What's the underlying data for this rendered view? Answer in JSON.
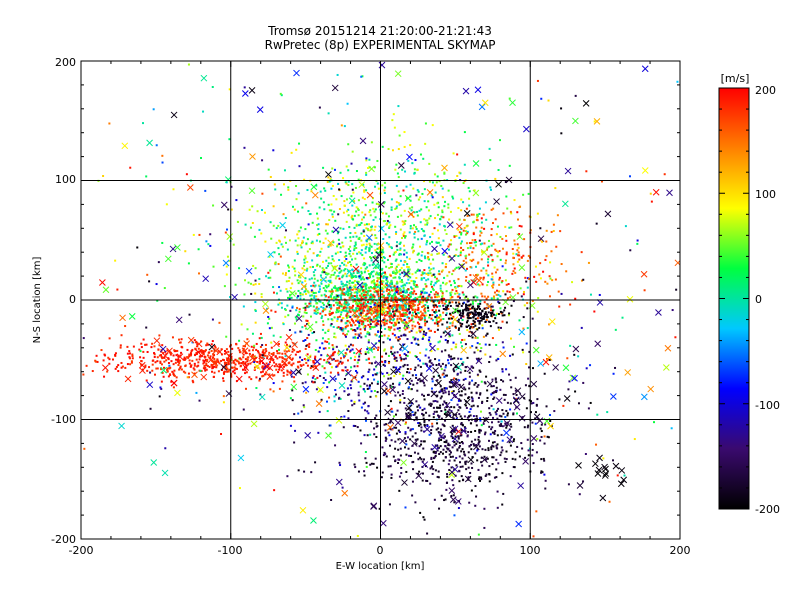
{
  "chart_data": {
    "type": "scatter",
    "title": "Tromsø 20151214 21:20:00-21:21:43",
    "subtitle": "RwPretec (8p) EXPERIMENTAL SKYMAP",
    "xlabel": "E-W location [km]",
    "ylabel": "N-S location [km]",
    "xlim": [
      -200,
      200
    ],
    "ylim": [
      -200,
      200
    ],
    "xticks": [
      "-200",
      "-100",
      "0",
      "100",
      "200"
    ],
    "yticks": [
      "-200",
      "-100",
      "0",
      "100",
      "200"
    ],
    "grid": true,
    "colorbar": {
      "label": "[m/s]",
      "range": [
        -200,
        200
      ],
      "ticks": [
        "-200",
        "-100",
        "0",
        "100",
        "200"
      ],
      "colormap": [
        "#000000",
        "#3a0a6e",
        "#0000ff",
        "#00c8ff",
        "#00ff40",
        "#ffff00",
        "#ff8000",
        "#ff0000"
      ]
    },
    "markers": [
      {
        "symbol": "dot",
        "meaning": "small plus / dot detections"
      },
      {
        "symbol": "x",
        "meaning": "cross detections"
      }
    ],
    "clusters": [
      {
        "cx": 0,
        "cy": 30,
        "sx": 45,
        "sy": 45,
        "n": 1400,
        "vel": [
          -20,
          110
        ]
      },
      {
        "cx": -8,
        "cy": 5,
        "sx": 25,
        "sy": 14,
        "n": 700,
        "vel": [
          -30,
          60
        ]
      },
      {
        "cx": 5,
        "cy": -8,
        "sx": 22,
        "sy": 10,
        "n": 500,
        "vel": [
          150,
          200
        ]
      },
      {
        "cx": -105,
        "cy": -50,
        "sx": 45,
        "sy": 8,
        "n": 650,
        "vel": [
          170,
          200
        ]
      },
      {
        "cx": 50,
        "cy": -108,
        "sx": 30,
        "sy": 32,
        "n": 750,
        "vel": [
          -200,
          -150
        ]
      },
      {
        "cx": 15,
        "cy": -60,
        "sx": 40,
        "sy": 35,
        "n": 450,
        "vel": [
          -190,
          -60
        ]
      },
      {
        "cx": 75,
        "cy": 30,
        "sx": 25,
        "sy": 25,
        "n": 220,
        "vel": [
          130,
          200
        ]
      },
      {
        "cx": 60,
        "cy": -12,
        "sx": 12,
        "sy": 6,
        "n": 180,
        "vel": [
          -200,
          -180
        ]
      },
      {
        "cx": 0,
        "cy": 0,
        "sx": 120,
        "sy": 110,
        "n": 350,
        "vel": [
          -200,
          200
        ]
      }
    ],
    "crosses": [
      {
        "cx": 0,
        "cy": 0,
        "sx": 110,
        "sy": 100,
        "n": 230,
        "vel": [
          -200,
          200
        ]
      },
      {
        "cx": -100,
        "cy": -50,
        "sx": 40,
        "sy": 10,
        "n": 40,
        "vel": [
          170,
          200
        ]
      },
      {
        "cx": 50,
        "cy": -100,
        "sx": 40,
        "sy": 40,
        "n": 70,
        "vel": [
          -200,
          -120
        ]
      },
      {
        "cx": 150,
        "cy": -145,
        "sx": 8,
        "sy": 8,
        "n": 14,
        "vel": [
          -200,
          -190
        ]
      }
    ]
  }
}
